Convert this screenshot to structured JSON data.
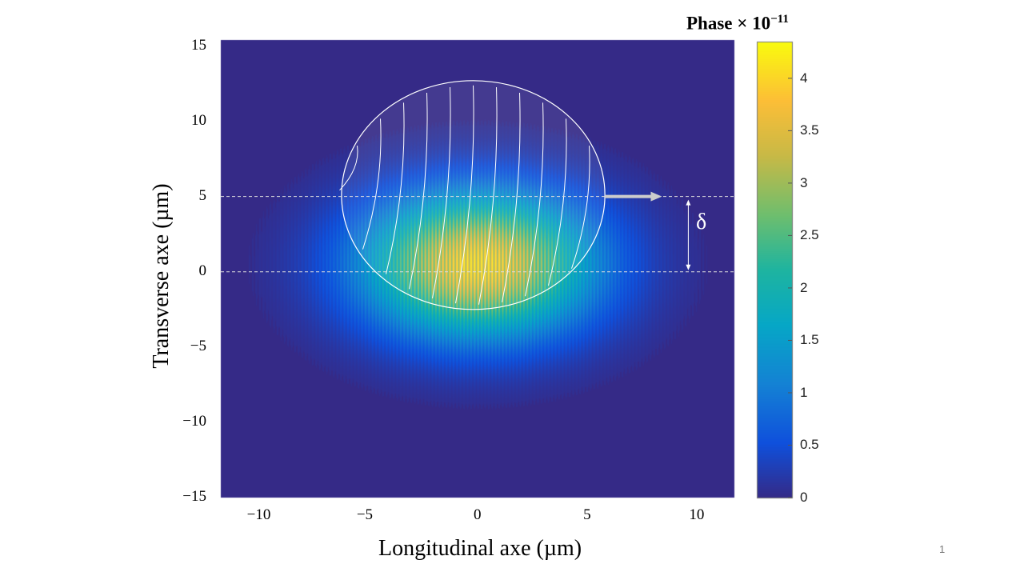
{
  "chart_data": {
    "type": "heatmap",
    "xlabel": "Longitudinal axe (µm)",
    "ylabel": "Transverse axe (µm)",
    "xlim": [
      -11.7,
      11.7
    ],
    "ylim": [
      -15,
      15.4
    ],
    "xticks": [
      "−10",
      "−5",
      "0",
      "5",
      "10"
    ],
    "xtick_values": [
      -10,
      -5,
      0,
      5,
      10
    ],
    "yticks": [
      "15",
      "10",
      "5",
      "0",
      "−5",
      "−10",
      "−15"
    ],
    "ytick_values": [
      15,
      10,
      5,
      0,
      -5,
      -10,
      -15
    ],
    "colorbar": {
      "title": "Phase × 10",
      "title_exponent": "−11",
      "ticks": [
        "0",
        "0.5",
        "1",
        "1.5",
        "2",
        "2.5",
        "3",
        "3.5",
        "4"
      ],
      "tick_values": [
        0,
        0.5,
        1,
        1.5,
        2,
        2.5,
        3,
        3.5,
        4
      ],
      "range": [
        0,
        4.35
      ],
      "colormap": "parula"
    },
    "field": {
      "shape": "gaussian",
      "center": [
        0,
        0.5
      ],
      "sigma_x": 3.6,
      "sigma_y": 3.3,
      "peak": 4.3,
      "longitudinal_modulation": true
    },
    "overlay": {
      "circle_center": [
        -0.2,
        5.1
      ],
      "circle_radius_x": 6.0,
      "circle_radius_y": 7.6,
      "dashed_lines_y": [
        5,
        0
      ],
      "arrow_from_x": 5.8,
      "arrow_to_x": 8.4,
      "arrow_y": 5,
      "delta_label": "δ",
      "delta_x": 9.6
    }
  },
  "slide": {
    "page_number": "1"
  }
}
